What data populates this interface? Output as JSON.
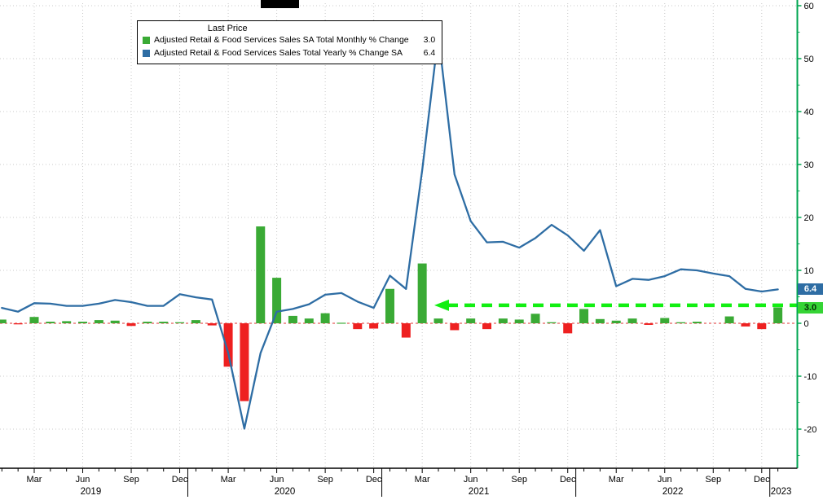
{
  "legend": {
    "title": "Last Price",
    "items": [
      {
        "label": "Adjusted Retail & Food Services Sales SA Total Monthly % Change",
        "value": "3.0",
        "color": "#3aaa35"
      },
      {
        "label": "Adjusted Retail & Food Services Sales Total Yearly % Change SA",
        "value": "6.4",
        "color": "#2e6da4"
      }
    ]
  },
  "badges": [
    {
      "value": "6.4",
      "bg": "#2e6da4",
      "fg": "#ffffff"
    },
    {
      "value": "3.0",
      "bg": "#35d435",
      "fg": "#062e06"
    }
  ],
  "axes": {
    "y_ticks": [
      -20,
      -10,
      0,
      10,
      20,
      30,
      40,
      50,
      60
    ],
    "quarter_labels": [
      "Mar",
      "Jun",
      "Sep",
      "Dec"
    ],
    "years": [
      "2019",
      "2020",
      "2021",
      "2022",
      "2023"
    ]
  },
  "chart_data": {
    "type": "line+bar",
    "x_unit": "month",
    "x_range": [
      "2019-01",
      "2023-01"
    ],
    "ylim": [
      -27,
      61
    ],
    "grid": true,
    "legend_position": "top-left",
    "colors": {
      "positive_bar": "#3aaa35",
      "negative_bar": "#ee2020",
      "line": "#2e6da4",
      "axis": "#00a651",
      "zero_line": "#e03131",
      "grid": "#c8c8c8",
      "arrow": "#12ef12"
    },
    "series": [
      {
        "name": "Adjusted Retail & Food Services Sales SA Total Monthly % Change",
        "type": "bar",
        "last": 3.0,
        "values": [
          0.7,
          -0.2,
          1.2,
          0.3,
          0.4,
          0.3,
          0.6,
          0.5,
          -0.5,
          0.3,
          0.3,
          0.2,
          0.6,
          -0.4,
          -8.2,
          -14.7,
          18.3,
          8.6,
          1.4,
          0.9,
          1.9,
          0.1,
          -1.1,
          -1.0,
          6.5,
          -2.7,
          11.3,
          0.9,
          -1.3,
          0.9,
          -1.1,
          0.9,
          0.7,
          1.8,
          0.2,
          -1.9,
          2.7,
          0.8,
          0.5,
          0.9,
          -0.3,
          1.0,
          0.2,
          0.3,
          0.0,
          1.3,
          -0.6,
          -1.1,
          3.0
        ]
      },
      {
        "name": "Adjusted Retail & Food Services Sales Total Yearly % Change SA",
        "type": "line",
        "last": 6.4,
        "values": [
          2.9,
          2.2,
          3.8,
          3.7,
          3.3,
          3.3,
          3.7,
          4.4,
          4.0,
          3.3,
          3.3,
          5.5,
          4.9,
          4.5,
          -5.6,
          -19.9,
          -5.6,
          2.2,
          2.7,
          3.6,
          5.4,
          5.7,
          4.1,
          2.9,
          9.0,
          6.5,
          29.0,
          54.5,
          28.1,
          19.3,
          15.3,
          15.4,
          14.3,
          16.1,
          18.6,
          16.6,
          13.7,
          17.6,
          7.0,
          8.4,
          8.2,
          8.9,
          10.2,
          10.0,
          9.4,
          8.9,
          6.5,
          6.0,
          6.4
        ]
      }
    ],
    "annotation": {
      "shape": "dashed-arrow-left",
      "y": 3.4,
      "color": "#12ef12"
    }
  }
}
